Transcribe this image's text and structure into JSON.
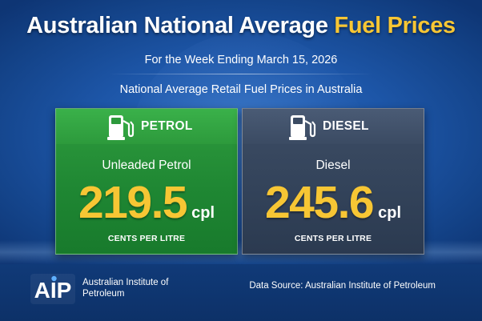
{
  "header": {
    "title_main": "Australian National Average",
    "title_accent": "Fuel Prices",
    "subtitle": "For the Week Ending March 15, 2026",
    "section_title": "National Average Retail Fuel Prices in Australia"
  },
  "cards": [
    {
      "label": "PETROL",
      "icon": "fuel-pump-icon",
      "fuel_name": "Unleaded Petrol",
      "price": "219.5",
      "unit": "cpl",
      "unit_label": "CENTS PER LITRE",
      "color": "#2a9a3a"
    },
    {
      "label": "DIESEL",
      "icon": "fuel-pump-icon",
      "fuel_name": "Diesel",
      "price": "245.6",
      "unit": "cpl",
      "unit_label": "CENTS PER LITRE",
      "color": "#37475f"
    }
  ],
  "footer": {
    "logo_text": "AIP",
    "org_name": "Australian Institute of Petroleum",
    "source": "Data Source: Australian Institute of Petroleum"
  },
  "colors": {
    "accent": "#f7c634",
    "background": "#1d56a8",
    "footer": "#0f376f"
  }
}
